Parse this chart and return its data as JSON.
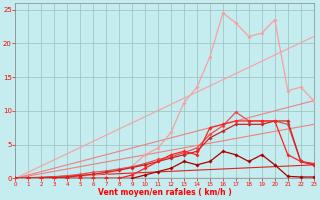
{
  "xlabel": "Vent moyen/en rafales ( km/h )",
  "xlim": [
    0,
    23
  ],
  "ylim": [
    0,
    26
  ],
  "yticks": [
    0,
    5,
    10,
    15,
    20,
    25
  ],
  "xticks": [
    0,
    1,
    2,
    3,
    4,
    5,
    6,
    7,
    8,
    9,
    10,
    11,
    12,
    13,
    14,
    15,
    16,
    17,
    18,
    19,
    20,
    21,
    22,
    23
  ],
  "background_color": "#c5ecee",
  "grid_color": "#9bbfc0",
  "lines": [
    {
      "x": [
        0,
        23
      ],
      "y": [
        0,
        11.5
      ],
      "color": "#f08080",
      "lw": 0.8,
      "marker": null
    },
    {
      "x": [
        0,
        23
      ],
      "y": [
        0,
        21.0
      ],
      "color": "#f8a0a0",
      "lw": 0.8,
      "marker": null
    },
    {
      "x": [
        0,
        23
      ],
      "y": [
        0,
        8.0
      ],
      "color": "#f08080",
      "lw": 0.8,
      "marker": null
    },
    {
      "x": [
        0,
        23
      ],
      "y": [
        0,
        2.0
      ],
      "color": "#dd2222",
      "lw": 0.8,
      "marker": null
    },
    {
      "x": [
        0,
        1,
        2,
        3,
        4,
        5,
        6,
        7,
        8,
        9,
        10,
        11,
        12,
        13,
        14,
        15,
        16,
        17,
        18,
        19,
        20,
        21,
        22,
        23
      ],
      "y": [
        0,
        0,
        0,
        0,
        0.2,
        0.3,
        0.5,
        0.8,
        1.2,
        1.8,
        3.5,
        4.5,
        6.8,
        11.2,
        13.5,
        18.0,
        24.5,
        23.0,
        21.0,
        21.5,
        23.5,
        13.0,
        13.5,
        11.5
      ],
      "color": "#f8a0a0",
      "lw": 0.9,
      "marker": "D",
      "ms": 1.8
    },
    {
      "x": [
        0,
        1,
        2,
        3,
        4,
        5,
        6,
        7,
        8,
        9,
        10,
        11,
        12,
        13,
        14,
        15,
        16,
        17,
        18,
        19,
        20,
        21,
        22,
        23
      ],
      "y": [
        0,
        0,
        0.1,
        0.2,
        0.4,
        0.6,
        0.9,
        1.1,
        1.4,
        1.7,
        2.2,
        2.8,
        3.2,
        3.8,
        4.5,
        6.5,
        7.8,
        9.8,
        8.5,
        8.5,
        8.5,
        8.0,
        2.5,
        2.0
      ],
      "color": "#e85050",
      "lw": 0.9,
      "marker": "D",
      "ms": 1.8
    },
    {
      "x": [
        0,
        1,
        2,
        3,
        4,
        5,
        6,
        7,
        8,
        9,
        10,
        11,
        12,
        13,
        14,
        15,
        16,
        17,
        18,
        19,
        20,
        21,
        22,
        23
      ],
      "y": [
        0,
        0,
        0,
        0.1,
        0.2,
        0.4,
        0.6,
        0.9,
        1.2,
        1.6,
        2.0,
        2.5,
        3.0,
        3.5,
        4.0,
        6.0,
        7.0,
        8.0,
        8.0,
        8.0,
        8.5,
        8.5,
        2.5,
        2.0
      ],
      "color": "#cc2222",
      "lw": 0.9,
      "marker": "D",
      "ms": 1.8
    },
    {
      "x": [
        0,
        1,
        2,
        3,
        4,
        5,
        6,
        7,
        8,
        9,
        10,
        11,
        12,
        13,
        14,
        15,
        16,
        17,
        18,
        19,
        20,
        21,
        22,
        23
      ],
      "y": [
        0,
        0,
        0,
        0,
        0,
        0,
        0,
        0,
        0,
        0,
        0.5,
        1.0,
        1.5,
        2.5,
        2.0,
        2.5,
        4.0,
        3.5,
        2.5,
        3.5,
        2.0,
        0.3,
        0.2,
        0.2
      ],
      "color": "#aa0000",
      "lw": 0.9,
      "marker": "D",
      "ms": 1.8
    },
    {
      "x": [
        0,
        1,
        2,
        3,
        4,
        5,
        6,
        7,
        8,
        9,
        10,
        11,
        12,
        13,
        14,
        15,
        16,
        17,
        18,
        19,
        20,
        21,
        22,
        23
      ],
      "y": [
        0,
        0,
        0,
        0,
        0,
        0,
        0,
        0,
        0,
        0.5,
        1.5,
        2.5,
        3.5,
        4.0,
        3.5,
        7.5,
        8.0,
        8.5,
        8.5,
        8.5,
        8.5,
        3.5,
        2.5,
        2.2
      ],
      "color": "#ff2020",
      "lw": 0.9,
      "marker": "D",
      "ms": 1.8
    }
  ]
}
